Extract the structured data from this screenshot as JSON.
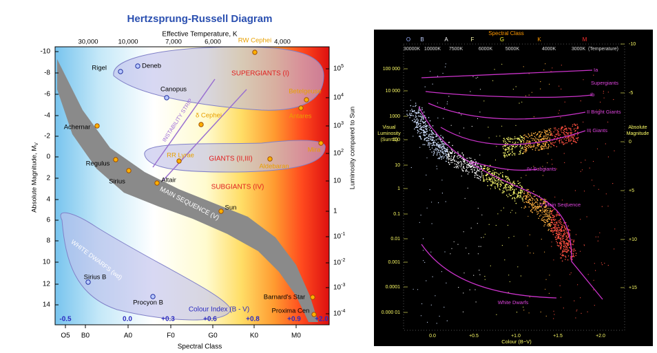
{
  "left": {
    "title": "Hertzsprung-Russell Diagram",
    "top_axis_label": "Effective Temperature, K",
    "top_ticks": [
      "30,000",
      "10,000",
      "7,000",
      "6,000",
      "4,000"
    ],
    "left_axis_label": {
      "text": "Absolute Magnitude, M",
      "sub": "V"
    },
    "left_ticks": [
      "-10",
      "-8",
      "-6",
      "-4",
      "-2",
      "0",
      "2",
      "4",
      "6",
      "8",
      "10",
      "12",
      "14"
    ],
    "right_axis_label": "Luminosity compared to Sun",
    "right_ticks": [
      {
        "base": "10",
        "exp": "5"
      },
      {
        "base": "10",
        "exp": "4"
      },
      {
        "base": "10",
        "exp": "3"
      },
      {
        "base": "10",
        "exp": "2"
      },
      {
        "base": "10"
      },
      {
        "base": "1"
      },
      {
        "base": "10",
        "exp": "-1"
      },
      {
        "base": "10",
        "exp": "-2"
      },
      {
        "base": "10",
        "exp": "-3"
      },
      {
        "base": "10",
        "exp": "-4"
      }
    ],
    "colour_index_label": "Colour Index (B - V)",
    "colour_index_ticks": [
      "-0.5",
      "0.0",
      "+0.3",
      "+0.6",
      "+0.8",
      "+0.9",
      "+2.0"
    ],
    "spectral_label": "Spectral Class",
    "spectral_ticks": [
      "O5",
      "B0",
      "A0",
      "F0",
      "G0",
      "K0",
      "M0"
    ],
    "regions": [
      "SUPERGIANTS (I)",
      "GIANTS (II,III)",
      "SUBGIANTS (IV)",
      "MAIN SEQUENCE (V)",
      "WHITE DWARFS (wd)",
      "INSTABILITY STRIP"
    ],
    "stars": [
      "Rigel",
      "Deneb",
      "Canopus",
      "RW Cephei",
      "Betelgeuse",
      "Antares",
      "δ Cephei",
      "Achernar",
      "RR Lyrae",
      "Mira",
      "Aldebaran",
      "Regulus",
      "Sirius",
      "Altair",
      "Sun",
      "Sirius B",
      "Procyon B",
      "Barnard's Star",
      "Proxima Cen"
    ]
  },
  "right": {
    "top_axis_label": "Spectral Class",
    "spectral_classes": [
      "O",
      "B",
      "A",
      "F",
      "G",
      "K",
      "M"
    ],
    "temperatures": [
      "30000K",
      "10000K",
      "7500K",
      "6000K",
      "5000K",
      "4000K",
      "3000K",
      "(Temperature)"
    ],
    "left_axis_label": [
      "Visual",
      "Luminosity",
      "(Sun=1)"
    ],
    "left_ticks": [
      "100 000",
      "10 000",
      "1000",
      "100",
      "10",
      "1",
      "0.1",
      "0.01",
      "0.001",
      "0.0001",
      "0.000 01"
    ],
    "right_axis_label": [
      "Absolute",
      "Magnitude"
    ],
    "right_ticks": [
      "-10",
      "-5",
      "0",
      "+5",
      "+10",
      "+15"
    ],
    "bottom_axis_label": "Colour (B−V)",
    "bottom_ticks": [
      "0.0",
      "+0.5",
      "+1.0",
      "+1.5",
      "+2.0"
    ],
    "labels": [
      "Ia",
      "Supergiants",
      "Ib",
      "II Bright Giants",
      "III  Giants",
      "IV Subgiants",
      "V  Main Sequence",
      "White Dwarfs"
    ]
  }
}
